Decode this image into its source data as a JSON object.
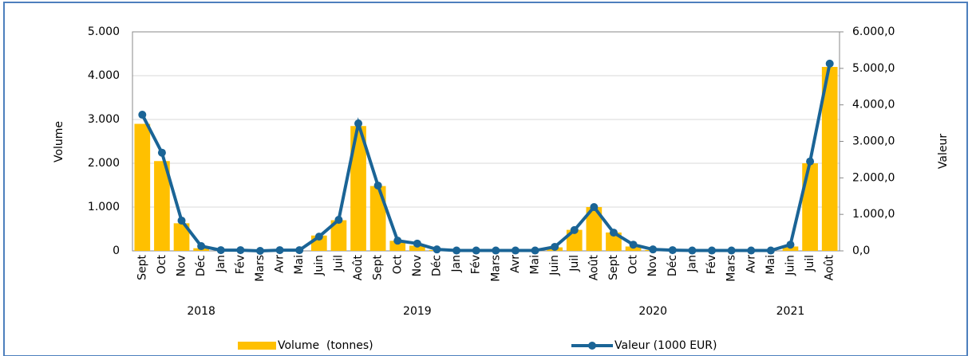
{
  "chart_data": {
    "type": "bar-line",
    "categories": [
      "Sept",
      "Oct",
      "Nov",
      "Déc",
      "Jan",
      "Fév",
      "Mars",
      "Avr",
      "Mai",
      "Juin",
      "Juil",
      "Août",
      "Sept",
      "Oct",
      "Nov",
      "Déc",
      "Jan",
      "Fév",
      "Mars",
      "Avr",
      "Mai",
      "Juin",
      "Juil",
      "Août",
      "Sept",
      "Oct",
      "Nov",
      "Déc",
      "Jan",
      "Fév",
      "Mars",
      "Avr",
      "Mai",
      "Juin",
      "Juil",
      "Août"
    ],
    "years": [
      "2018",
      "2019",
      "2020",
      "2021"
    ],
    "y_label": "Volume",
    "y2_label": "Valeur",
    "series": [
      {
        "name": "Volume  (tonnes)",
        "color": "#ffc000",
        "kind": "bar",
        "values": [
          2900,
          2050,
          630,
          60,
          0,
          0,
          0,
          0,
          0,
          350,
          700,
          2850,
          1480,
          230,
          120,
          20,
          0,
          0,
          0,
          0,
          0,
          80,
          480,
          1000,
          420,
          100,
          20,
          10,
          0,
          0,
          0,
          0,
          0,
          100,
          2000,
          4200
        ]
      },
      {
        "name": "Valeur (1000 EUR)",
        "color": "#1a6496",
        "kind": "line",
        "axis": "y2",
        "values": [
          3730,
          2690,
          830,
          130,
          20,
          20,
          0,
          20,
          20,
          390,
          850,
          3490,
          1790,
          280,
          200,
          40,
          10,
          10,
          10,
          10,
          10,
          110,
          570,
          1200,
          500,
          170,
          40,
          20,
          10,
          10,
          10,
          10,
          10,
          170,
          2450,
          5130
        ]
      }
    ],
    "ylim": [
      0,
      5000
    ],
    "yticks": [
      0,
      {
        "value": 1000,
        "label": "1.000"
      },
      {
        "value": 2000,
        "label": "2.000"
      },
      {
        "value": 3000,
        "label": "3.000"
      },
      {
        "value": 4000,
        "label": "4.000"
      },
      {
        "value": 5000,
        "label": "5.000"
      }
    ],
    "y2lim": [
      0,
      6000
    ],
    "y2ticks": [
      {
        "value": 0,
        "label": "0,0"
      },
      {
        "value": 1000,
        "label": "1.000,0"
      },
      {
        "value": 2000,
        "label": "2.000,0"
      },
      {
        "value": 3000,
        "label": "3.000,0"
      },
      {
        "value": 4000,
        "label": "4.000,0"
      },
      {
        "value": 5000,
        "label": "5.000,0"
      },
      {
        "value": 6000,
        "label": "6.000,0"
      }
    ],
    "grid": true
  }
}
